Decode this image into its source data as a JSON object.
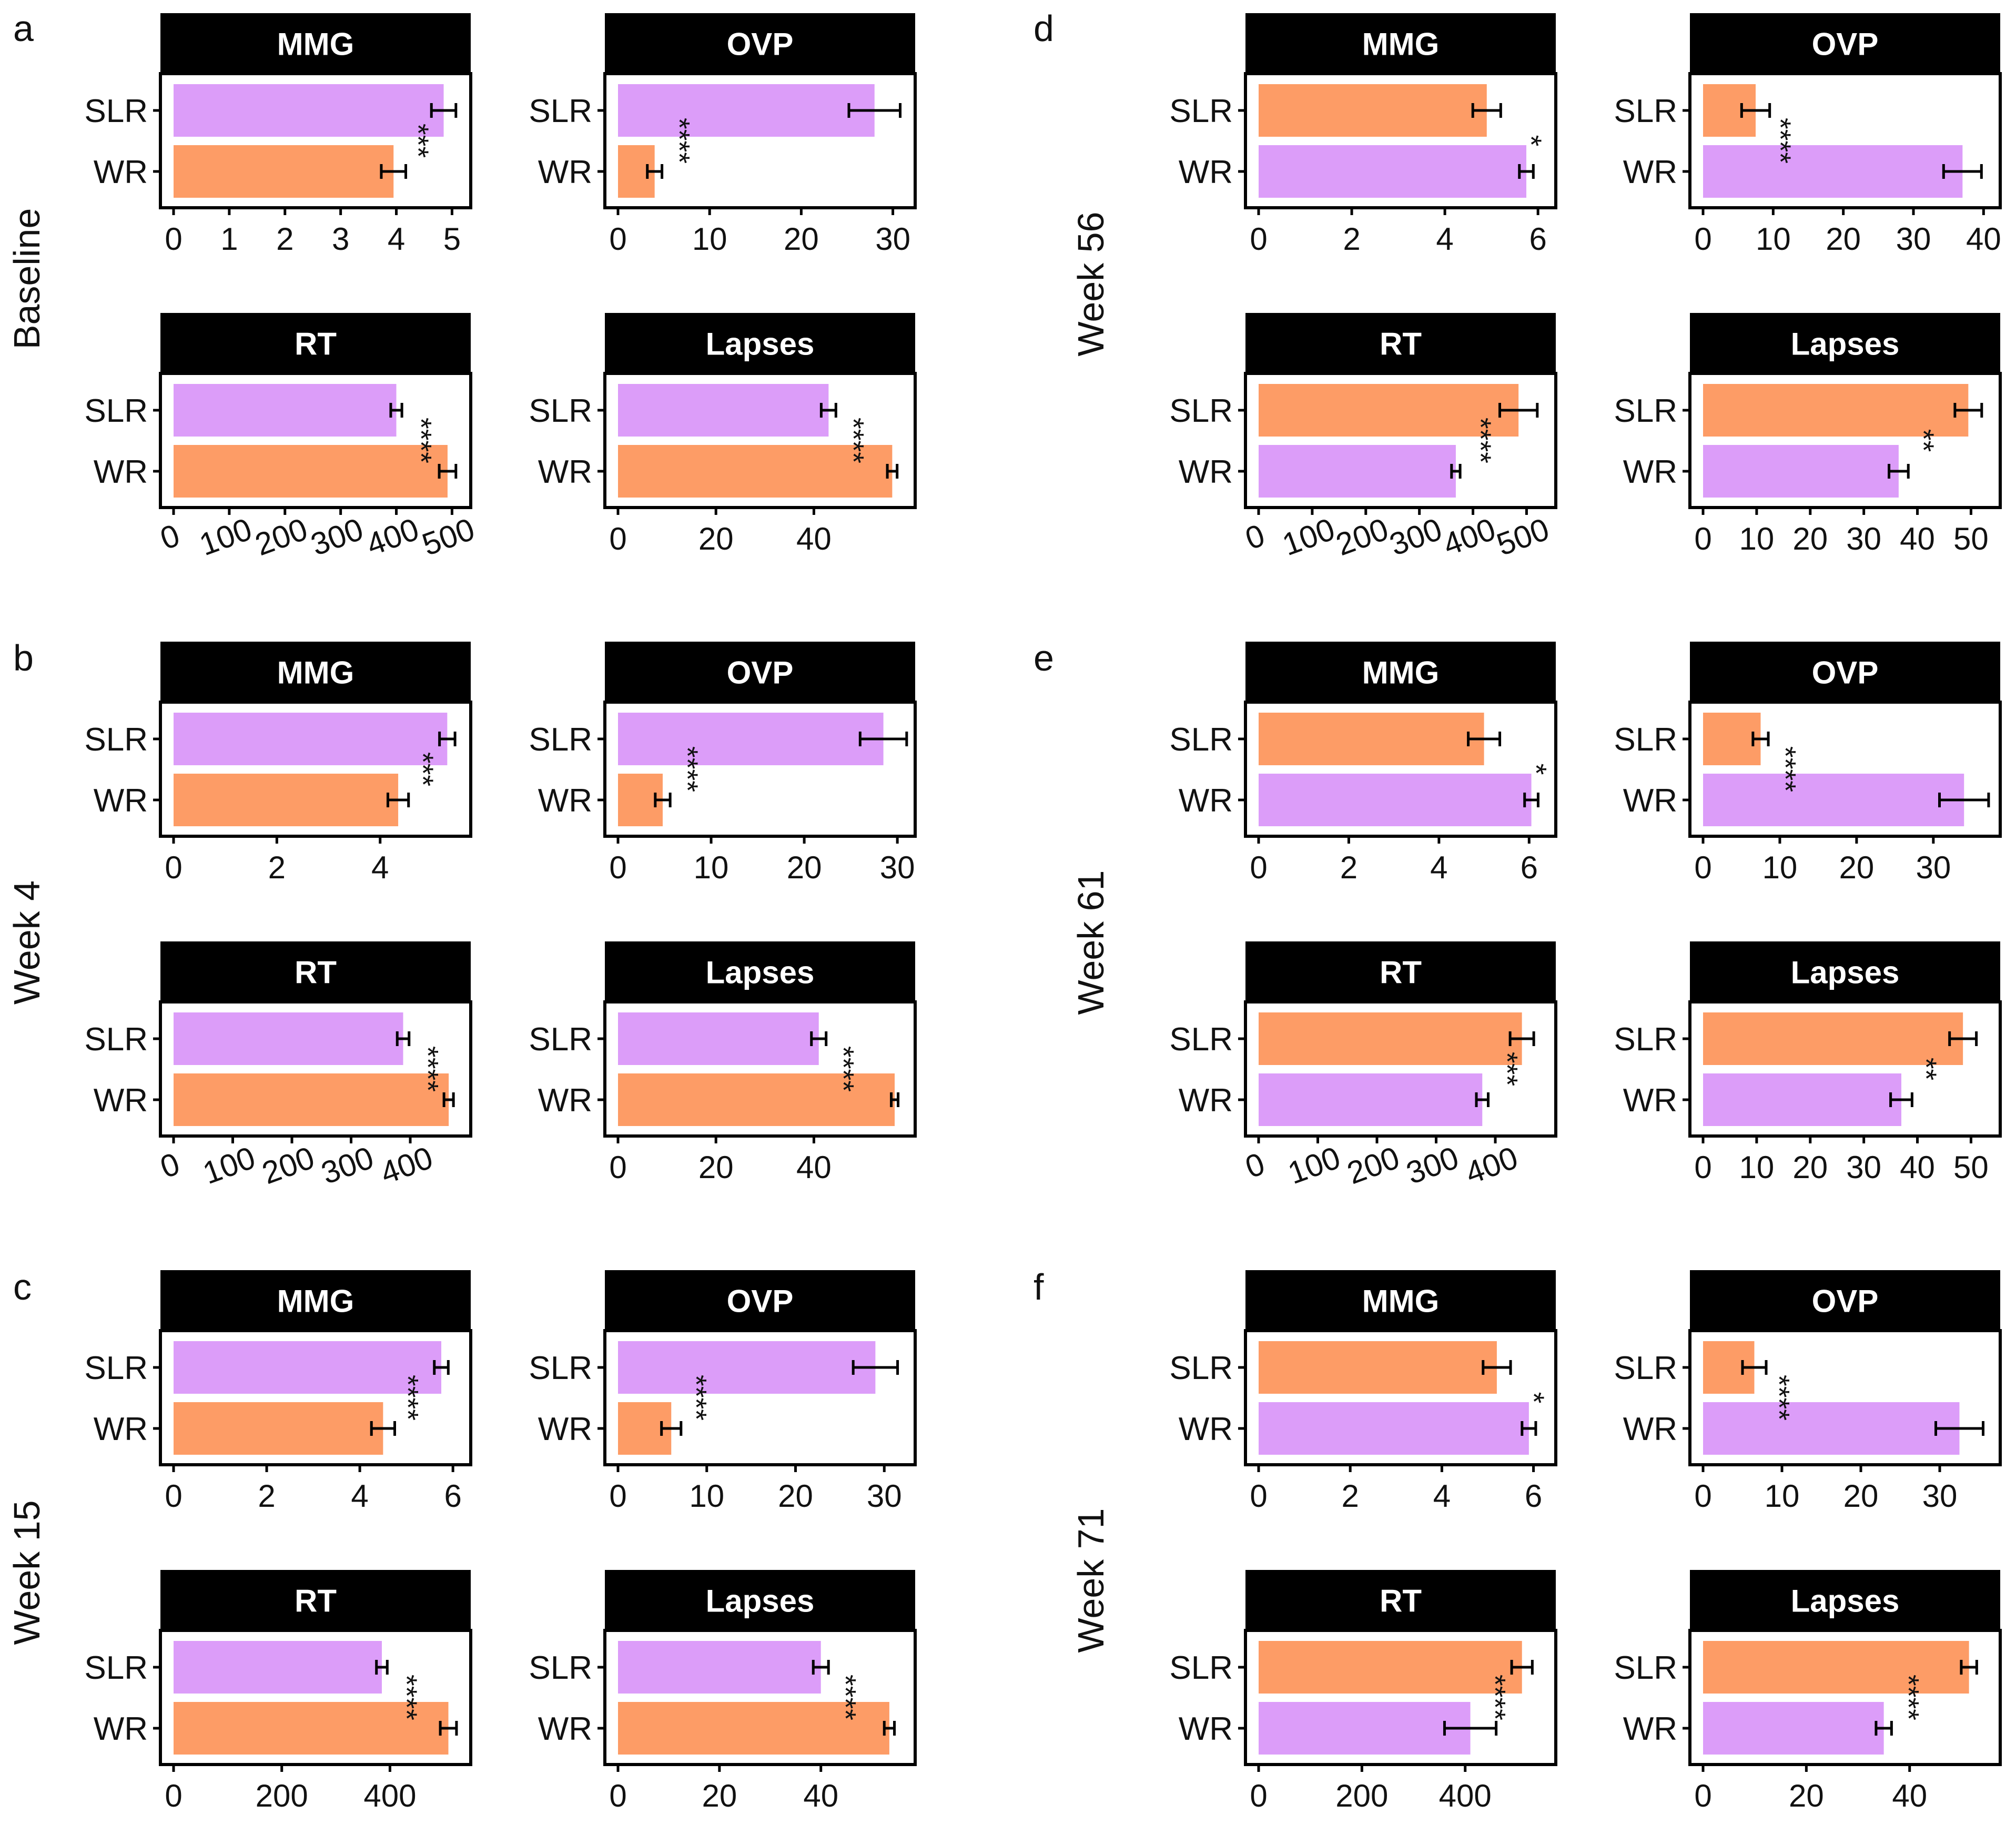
{
  "colors": {
    "purple": "#dc9df9",
    "orange": "#fd9c66",
    "strip": "#000000",
    "text": "#111111"
  },
  "figure": {
    "panels": [
      {
        "letter": "a",
        "row_label": "Baseline"
      },
      {
        "letter": "b",
        "row_label": "Week 4"
      },
      {
        "letter": "c",
        "row_label": "Week 15"
      },
      {
        "letter": "d",
        "row_label": "Week 56"
      },
      {
        "letter": "e",
        "row_label": "Week 61"
      },
      {
        "letter": "f",
        "row_label": "Week 71"
      }
    ]
  },
  "chart_data": [
    {
      "type": "bar",
      "orientation": "horizontal",
      "panel": "a",
      "title": "MMG",
      "categories": [
        "SLR",
        "WR"
      ],
      "values": [
        4.85,
        3.95
      ],
      "errors": [
        0.22,
        0.22
      ],
      "colors": [
        "purple",
        "orange"
      ],
      "significance": "***",
      "xlim": [
        0,
        5.1
      ],
      "xticks": [
        0,
        1,
        2,
        3,
        4,
        5
      ],
      "tick_labels": [
        "0",
        "1",
        "2",
        "3",
        "4",
        "5"
      ]
    },
    {
      "type": "bar",
      "orientation": "horizontal",
      "panel": "a",
      "title": "OVP",
      "categories": [
        "SLR",
        "WR"
      ],
      "values": [
        28,
        4
      ],
      "errors": [
        2.8,
        0.8
      ],
      "colors": [
        "purple",
        "orange"
      ],
      "significance": "****",
      "xlim": [
        0,
        31
      ],
      "xticks": [
        0,
        10,
        20,
        30
      ],
      "tick_labels": [
        "0",
        "10",
        "20",
        "30"
      ]
    },
    {
      "type": "bar",
      "orientation": "horizontal",
      "panel": "a",
      "title": "RT",
      "categories": [
        "SLR",
        "WR"
      ],
      "values": [
        400,
        492
      ],
      "errors": [
        10,
        15
      ],
      "colors": [
        "purple",
        "orange"
      ],
      "significance": "****",
      "xlim": [
        0,
        510
      ],
      "xticks": [
        0,
        100,
        200,
        300,
        400,
        500
      ],
      "tick_labels": [
        "0",
        "100",
        "200",
        "300",
        "400",
        "500"
      ],
      "rotated_ticks": true
    },
    {
      "type": "bar",
      "orientation": "horizontal",
      "panel": "a",
      "title": "Lapses",
      "categories": [
        "SLR",
        "WR"
      ],
      "values": [
        43,
        56
      ],
      "errors": [
        1.5,
        1
      ],
      "colors": [
        "purple",
        "orange"
      ],
      "significance": "****",
      "xlim": [
        0,
        58
      ],
      "xticks": [
        0,
        20,
        40
      ],
      "tick_labels": [
        "0",
        "20",
        "40"
      ]
    },
    {
      "type": "bar",
      "orientation": "horizontal",
      "panel": "b",
      "title": "MMG",
      "categories": [
        "SLR",
        "WR"
      ],
      "values": [
        5.3,
        4.35
      ],
      "errors": [
        0.15,
        0.2
      ],
      "colors": [
        "purple",
        "orange"
      ],
      "significance": "***",
      "xlim": [
        0,
        5.5
      ],
      "xticks": [
        0,
        2,
        4
      ],
      "tick_labels": [
        "0",
        "2",
        "4"
      ]
    },
    {
      "type": "bar",
      "orientation": "horizontal",
      "panel": "b",
      "title": "OVP",
      "categories": [
        "SLR",
        "WR"
      ],
      "values": [
        28.5,
        4.8
      ],
      "errors": [
        2.5,
        0.8
      ],
      "colors": [
        "purple",
        "orange"
      ],
      "significance": "****",
      "xlim": [
        0,
        30.5
      ],
      "xticks": [
        0,
        10,
        20,
        30
      ],
      "tick_labels": [
        "0",
        "10",
        "20",
        "30"
      ]
    },
    {
      "type": "bar",
      "orientation": "horizontal",
      "panel": "b",
      "title": "RT",
      "categories": [
        "SLR",
        "WR"
      ],
      "values": [
        388,
        465
      ],
      "errors": [
        10,
        8
      ],
      "colors": [
        "purple",
        "orange"
      ],
      "significance": "****",
      "xlim": [
        0,
        480
      ],
      "xticks": [
        0,
        100,
        200,
        300,
        400
      ],
      "tick_labels": [
        "0",
        "100",
        "200",
        "300",
        "400"
      ],
      "rotated_ticks": true
    },
    {
      "type": "bar",
      "orientation": "horizontal",
      "panel": "b",
      "title": "Lapses",
      "categories": [
        "SLR",
        "WR"
      ],
      "values": [
        41,
        56.5
      ],
      "errors": [
        1.5,
        0.7
      ],
      "colors": [
        "purple",
        "orange"
      ],
      "significance": "****",
      "xlim": [
        0,
        58
      ],
      "xticks": [
        0,
        20,
        40
      ],
      "tick_labels": [
        "0",
        "20",
        "40"
      ]
    },
    {
      "type": "bar",
      "orientation": "horizontal",
      "panel": "c",
      "title": "MMG",
      "categories": [
        "SLR",
        "WR"
      ],
      "values": [
        5.75,
        4.5
      ],
      "errors": [
        0.15,
        0.25
      ],
      "colors": [
        "purple",
        "orange"
      ],
      "significance": "****",
      "xlim": [
        0,
        6.1
      ],
      "xticks": [
        0,
        2,
        4,
        6
      ],
      "tick_labels": [
        "0",
        "2",
        "4",
        "6"
      ]
    },
    {
      "type": "bar",
      "orientation": "horizontal",
      "panel": "c",
      "title": "OVP",
      "categories": [
        "SLR",
        "WR"
      ],
      "values": [
        29,
        6
      ],
      "errors": [
        2.5,
        1.1
      ],
      "colors": [
        "purple",
        "orange"
      ],
      "significance": "****",
      "xlim": [
        0,
        32
      ],
      "xticks": [
        0,
        10,
        20,
        30
      ],
      "tick_labels": [
        "0",
        "10",
        "20",
        "30"
      ]
    },
    {
      "type": "bar",
      "orientation": "horizontal",
      "panel": "c",
      "title": "RT",
      "categories": [
        "SLR",
        "WR"
      ],
      "values": [
        385,
        508
      ],
      "errors": [
        10,
        15
      ],
      "colors": [
        "purple",
        "orange"
      ],
      "significance": "****",
      "xlim": [
        0,
        525
      ],
      "xticks": [
        0,
        200,
        400
      ],
      "tick_labels": [
        "0",
        "200",
        "400"
      ]
    },
    {
      "type": "bar",
      "orientation": "horizontal",
      "panel": "c",
      "title": "Lapses",
      "categories": [
        "SLR",
        "WR"
      ],
      "values": [
        40,
        53.5
      ],
      "errors": [
        1.5,
        1
      ],
      "colors": [
        "purple",
        "orange"
      ],
      "significance": "****",
      "xlim": [
        0,
        56
      ],
      "xticks": [
        0,
        20,
        40
      ],
      "tick_labels": [
        "0",
        "20",
        "40"
      ]
    },
    {
      "type": "bar",
      "orientation": "horizontal",
      "panel": "d",
      "title": "MMG",
      "categories": [
        "SLR",
        "WR"
      ],
      "values": [
        4.9,
        5.75
      ],
      "errors": [
        0.3,
        0.15
      ],
      "colors": [
        "orange",
        "purple"
      ],
      "significance": "*",
      "xlim": [
        0,
        6.1
      ],
      "xticks": [
        0,
        2,
        4,
        6
      ],
      "tick_labels": [
        "0",
        "2",
        "4",
        "6"
      ]
    },
    {
      "type": "bar",
      "orientation": "horizontal",
      "panel": "d",
      "title": "OVP",
      "categories": [
        "SLR",
        "WR"
      ],
      "values": [
        7.5,
        37
      ],
      "errors": [
        2,
        2.7
      ],
      "colors": [
        "orange",
        "purple"
      ],
      "significance": "****",
      "xlim": [
        0,
        40.5
      ],
      "xticks": [
        0,
        10,
        20,
        30,
        40
      ],
      "tick_labels": [
        "0",
        "10",
        "20",
        "30",
        "40"
      ]
    },
    {
      "type": "bar",
      "orientation": "horizontal",
      "panel": "d",
      "title": "RT",
      "categories": [
        "SLR",
        "WR"
      ],
      "values": [
        485,
        368
      ],
      "errors": [
        35,
        8
      ],
      "colors": [
        "orange",
        "purple"
      ],
      "significance": "****",
      "xlim": [
        0,
        530
      ],
      "xticks": [
        0,
        100,
        200,
        300,
        400,
        500
      ],
      "tick_labels": [
        "0",
        "100",
        "200",
        "300",
        "400",
        "500"
      ],
      "rotated_ticks": true
    },
    {
      "type": "bar",
      "orientation": "horizontal",
      "panel": "d",
      "title": "Lapses",
      "categories": [
        "SLR",
        "WR"
      ],
      "values": [
        49.5,
        36.5
      ],
      "errors": [
        2.5,
        1.8
      ],
      "colors": [
        "orange",
        "purple"
      ],
      "significance": "**",
      "xlim": [
        0,
        53
      ],
      "xticks": [
        0,
        10,
        20,
        30,
        40,
        50
      ],
      "tick_labels": [
        "0",
        "10",
        "20",
        "30",
        "40",
        "50"
      ]
    },
    {
      "type": "bar",
      "orientation": "horizontal",
      "panel": "e",
      "title": "MMG",
      "categories": [
        "SLR",
        "WR"
      ],
      "values": [
        5,
        6.05
      ],
      "errors": [
        0.35,
        0.15
      ],
      "colors": [
        "orange",
        "purple"
      ],
      "significance": "*",
      "xlim": [
        0,
        6.3
      ],
      "xticks": [
        0,
        2,
        4,
        6
      ],
      "tick_labels": [
        "0",
        "2",
        "4",
        "6"
      ]
    },
    {
      "type": "bar",
      "orientation": "horizontal",
      "panel": "e",
      "title": "OVP",
      "categories": [
        "SLR",
        "WR"
      ],
      "values": [
        7.5,
        34
      ],
      "errors": [
        1,
        3.2
      ],
      "colors": [
        "orange",
        "purple"
      ],
      "significance": "****",
      "xlim": [
        0,
        37
      ],
      "xticks": [
        0,
        10,
        20,
        30
      ],
      "tick_labels": [
        "0",
        "10",
        "20",
        "30"
      ]
    },
    {
      "type": "bar",
      "orientation": "horizontal",
      "panel": "e",
      "title": "RT",
      "categories": [
        "SLR",
        "WR"
      ],
      "values": [
        445,
        378
      ],
      "errors": [
        20,
        10
      ],
      "colors": [
        "orange",
        "purple"
      ],
      "significance": "***",
      "xlim": [
        0,
        480
      ],
      "xticks": [
        0,
        100,
        200,
        300,
        400
      ],
      "tick_labels": [
        "0",
        "100",
        "200",
        "300",
        "400"
      ],
      "rotated_ticks": true
    },
    {
      "type": "bar",
      "orientation": "horizontal",
      "panel": "e",
      "title": "Lapses",
      "categories": [
        "SLR",
        "WR"
      ],
      "values": [
        48.5,
        37
      ],
      "errors": [
        2.5,
        2
      ],
      "colors": [
        "orange",
        "purple"
      ],
      "significance": "**",
      "xlim": [
        0,
        53
      ],
      "xticks": [
        0,
        10,
        20,
        30,
        40,
        50
      ],
      "tick_labels": [
        "0",
        "10",
        "20",
        "30",
        "40",
        "50"
      ]
    },
    {
      "type": "bar",
      "orientation": "horizontal",
      "panel": "f",
      "title": "MMG",
      "categories": [
        "SLR",
        "WR"
      ],
      "values": [
        5.2,
        5.9
      ],
      "errors": [
        0.3,
        0.15
      ],
      "colors": [
        "orange",
        "purple"
      ],
      "significance": "*",
      "xlim": [
        0,
        6.2
      ],
      "xticks": [
        0,
        2,
        4,
        6
      ],
      "tick_labels": [
        "0",
        "2",
        "4",
        "6"
      ]
    },
    {
      "type": "bar",
      "orientation": "horizontal",
      "panel": "f",
      "title": "OVP",
      "categories": [
        "SLR",
        "WR"
      ],
      "values": [
        6.5,
        32.5
      ],
      "errors": [
        1.5,
        3
      ],
      "colors": [
        "orange",
        "purple"
      ],
      "significance": "****",
      "xlim": [
        0,
        36
      ],
      "xticks": [
        0,
        10,
        20,
        30
      ],
      "tick_labels": [
        "0",
        "10",
        "20",
        "30"
      ]
    },
    {
      "type": "bar",
      "orientation": "horizontal",
      "panel": "f",
      "title": "RT",
      "categories": [
        "SLR",
        "WR"
      ],
      "values": [
        510,
        410
      ],
      "errors": [
        20,
        50
      ],
      "colors": [
        "orange",
        "purple"
      ],
      "significance": "****",
      "xlim": [
        0,
        550
      ],
      "xticks": [
        0,
        200,
        400
      ],
      "tick_labels": [
        "0",
        "200",
        "400"
      ]
    },
    {
      "type": "bar",
      "orientation": "horizontal",
      "panel": "f",
      "title": "Lapses",
      "categories": [
        "SLR",
        "WR"
      ],
      "values": [
        51.5,
        35
      ],
      "errors": [
        1.5,
        1.5
      ],
      "colors": [
        "orange",
        "purple"
      ],
      "significance": "****",
      "xlim": [
        0,
        55
      ],
      "xticks": [
        0,
        20,
        40
      ],
      "tick_labels": [
        "0",
        "20",
        "40"
      ]
    }
  ]
}
